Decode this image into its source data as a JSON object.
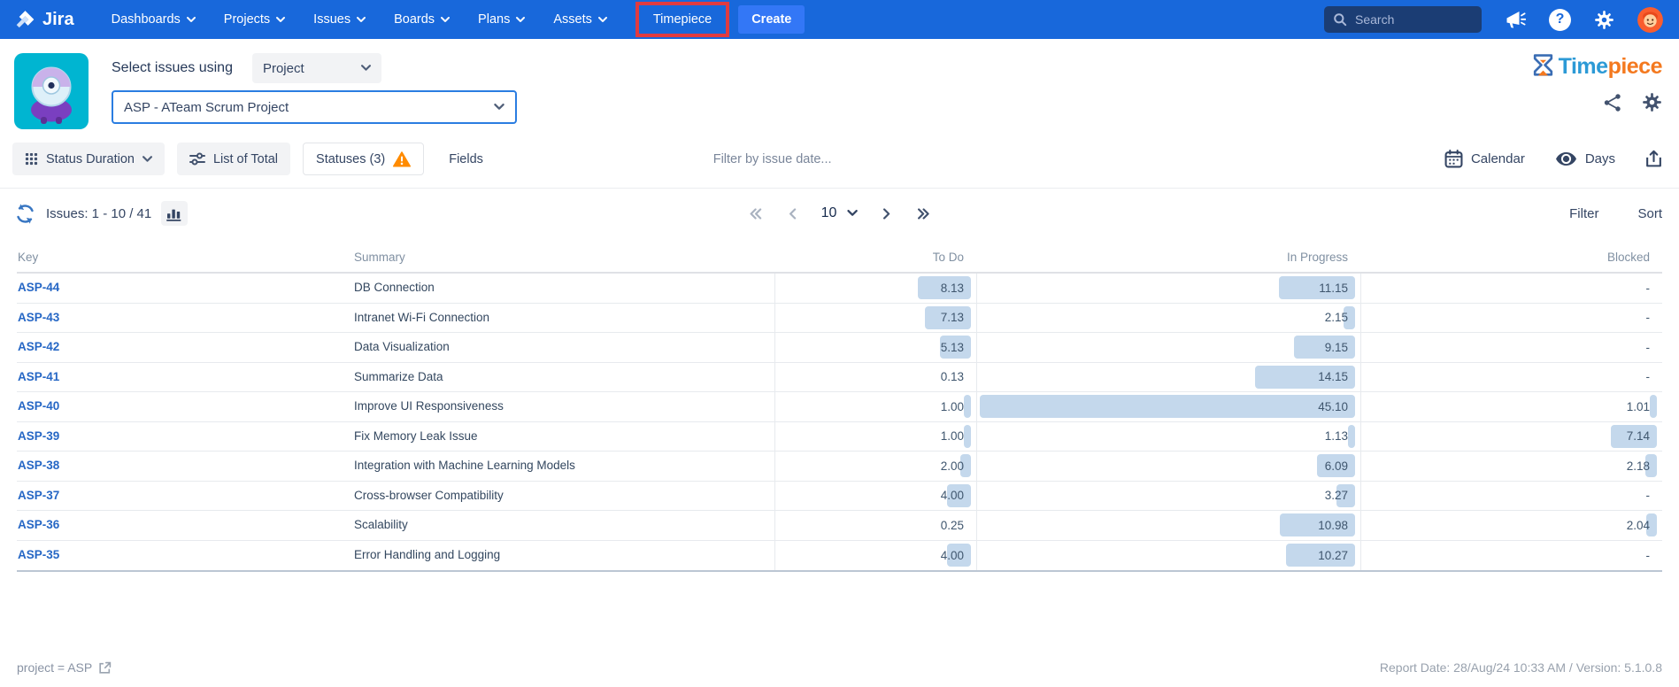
{
  "nav": {
    "brand": "Jira",
    "items": [
      {
        "label": "Dashboards"
      },
      {
        "label": "Projects"
      },
      {
        "label": "Issues"
      },
      {
        "label": "Boards"
      },
      {
        "label": "Plans"
      },
      {
        "label": "Assets"
      }
    ],
    "timepiece_tab": "Timepiece",
    "create_label": "Create",
    "search_placeholder": "Search"
  },
  "header": {
    "select_label": "Select issues using",
    "mode_value": "Project",
    "project_value": "ASP - ATeam Scrum Project",
    "logo_part1": "Time",
    "logo_part2": "piece"
  },
  "toolbar": {
    "view_button": "Status Duration",
    "list_button": "List of Total",
    "statuses_button": "Statuses (3)",
    "fields_button": "Fields",
    "date_filter": "Filter by issue date...",
    "calendar_button": "Calendar",
    "days_button": "Days"
  },
  "issues_bar": {
    "count_label": "Issues: 1 - 10 / 41",
    "page_size": "10",
    "filter_label": "Filter",
    "sort_label": "Sort"
  },
  "table": {
    "columns": [
      "Key",
      "Summary",
      "To Do",
      "In Progress",
      "Blocked"
    ],
    "rows": [
      {
        "key": "ASP-44",
        "summary": "DB Connection",
        "todo": "8.13",
        "in_progress": "11.15",
        "blocked": "-"
      },
      {
        "key": "ASP-43",
        "summary": "Intranet Wi-Fi Connection",
        "todo": "7.13",
        "in_progress": "2.15",
        "blocked": "-"
      },
      {
        "key": "ASP-42",
        "summary": "Data Visualization",
        "todo": "5.13",
        "in_progress": "9.15",
        "blocked": "-"
      },
      {
        "key": "ASP-41",
        "summary": "Summarize Data",
        "todo": "0.13",
        "in_progress": "14.15",
        "blocked": "-"
      },
      {
        "key": "ASP-40",
        "summary": "Improve UI Responsiveness",
        "todo": "1.00",
        "in_progress": "45.10",
        "blocked": "1.01"
      },
      {
        "key": "ASP-39",
        "summary": "Fix Memory Leak Issue",
        "todo": "1.00",
        "in_progress": "1.13",
        "blocked": "7.14"
      },
      {
        "key": "ASP-38",
        "summary": "Integration with Machine Learning Models",
        "todo": "2.00",
        "in_progress": "6.09",
        "blocked": "2.18"
      },
      {
        "key": "ASP-37",
        "summary": "Cross-browser Compatibility",
        "todo": "4.00",
        "in_progress": "3.27",
        "blocked": "-"
      },
      {
        "key": "ASP-36",
        "summary": "Scalability",
        "todo": "0.25",
        "in_progress": "10.98",
        "blocked": "2.04"
      },
      {
        "key": "ASP-35",
        "summary": "Error Handling and Logging",
        "todo": "4.00",
        "in_progress": "10.27",
        "blocked": "-"
      }
    ]
  },
  "footer": {
    "jql": "project = ASP",
    "report_info": "Report Date: 28/Aug/24 10:33 AM / Version: 5.1.0.8"
  },
  "colors": {
    "nav_blue": "#1868db",
    "highlight_red": "#e13b40",
    "duration_bar": "#c4d8ec",
    "warning_orange": "#ff8b00",
    "link_blue": "#2667c5",
    "logo_blue": "#2c9ad6",
    "logo_orange": "#f4791f"
  },
  "icons": {
    "jira-logo-icon": "diamond mark",
    "search-icon": "magnifier",
    "megaphone-icon": "announcement horn",
    "help-icon": "question mark circle",
    "gear-icon": "settings gear",
    "avatar": "orange user avatar",
    "app-icon": "purple alien on teal tile",
    "hourglass-icon": "blue hourglass with orange sand",
    "share-icon": "connected nodes",
    "grid-icon": "3x3 dots",
    "sliders-icon": "filter sliders",
    "warning-icon": "orange triangle exclamation",
    "calendar-icon": "calendar grid",
    "eye-icon": "visibility eye",
    "export-icon": "box with up arrow",
    "refresh-icon": "circular arrows",
    "bar-chart-icon": "column chart",
    "external-link-icon": "box with arrow",
    "pagination-icons": "first/prev/next/last chevrons"
  }
}
